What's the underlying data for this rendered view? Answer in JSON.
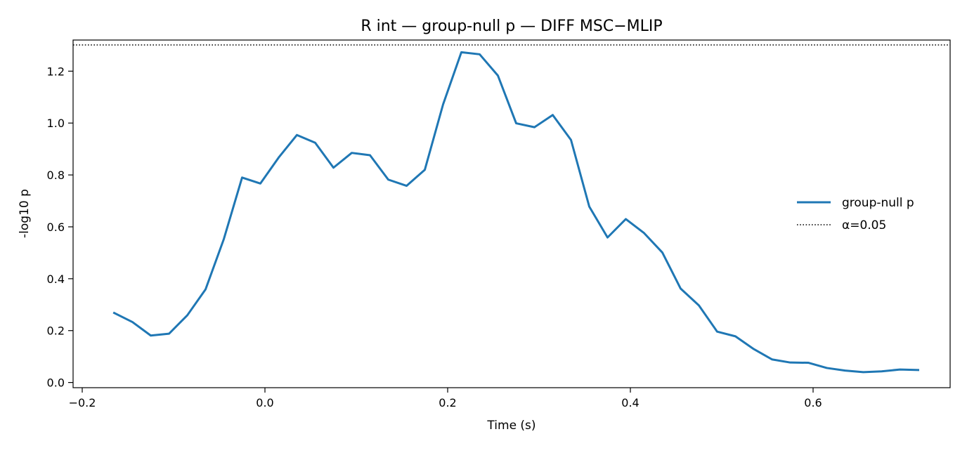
{
  "chart_data": {
    "type": "line",
    "title": "R int — group-null p — DIFF MSC−MLIP",
    "xlabel": "Time (s)",
    "ylabel": "-log10 p",
    "xlim": [
      -0.21,
      0.75
    ],
    "ylim": [
      -0.02,
      1.32
    ],
    "xticks": [
      -0.2,
      0.0,
      0.2,
      0.4,
      0.6
    ],
    "xtick_labels": [
      "−0.2",
      "0.0",
      "0.2",
      "0.4",
      "0.6"
    ],
    "yticks": [
      0.0,
      0.2,
      0.4,
      0.6,
      0.8,
      1.0,
      1.2
    ],
    "ytick_labels": [
      "0.0",
      "0.2",
      "0.4",
      "0.6",
      "0.8",
      "1.0",
      "1.2"
    ],
    "grid": false,
    "legend": "center-right",
    "series": [
      {
        "name": "group-null p",
        "color": "#1f77b4",
        "style": "solid",
        "x": [
          -0.165,
          -0.145,
          -0.125,
          -0.105,
          -0.085,
          -0.065,
          -0.045,
          -0.025,
          -0.005,
          0.015,
          0.035,
          0.055,
          0.075,
          0.095,
          0.115,
          0.135,
          0.155,
          0.175,
          0.195,
          0.215,
          0.235,
          0.255,
          0.275,
          0.295,
          0.315,
          0.335,
          0.355,
          0.375,
          0.395,
          0.415,
          0.435,
          0.455,
          0.475,
          0.495,
          0.515,
          0.535,
          0.555,
          0.575,
          0.595,
          0.615,
          0.635,
          0.655,
          0.675,
          0.695,
          0.715
        ],
        "values": [
          0.268,
          0.233,
          0.181,
          0.188,
          0.259,
          0.359,
          0.553,
          0.79,
          0.767,
          0.867,
          0.954,
          0.924,
          0.828,
          0.885,
          0.876,
          0.782,
          0.758,
          0.82,
          1.072,
          1.273,
          1.265,
          1.183,
          0.999,
          0.984,
          1.031,
          0.935,
          0.678,
          0.559,
          0.63,
          0.576,
          0.501,
          0.362,
          0.297,
          0.196,
          0.178,
          0.129,
          0.089,
          0.077,
          0.076,
          0.056,
          0.046,
          0.04,
          0.043,
          0.05,
          0.048
        ]
      },
      {
        "name": "α=0.05",
        "color": "#000000",
        "style": "dotted",
        "y": 1.30103
      }
    ]
  }
}
